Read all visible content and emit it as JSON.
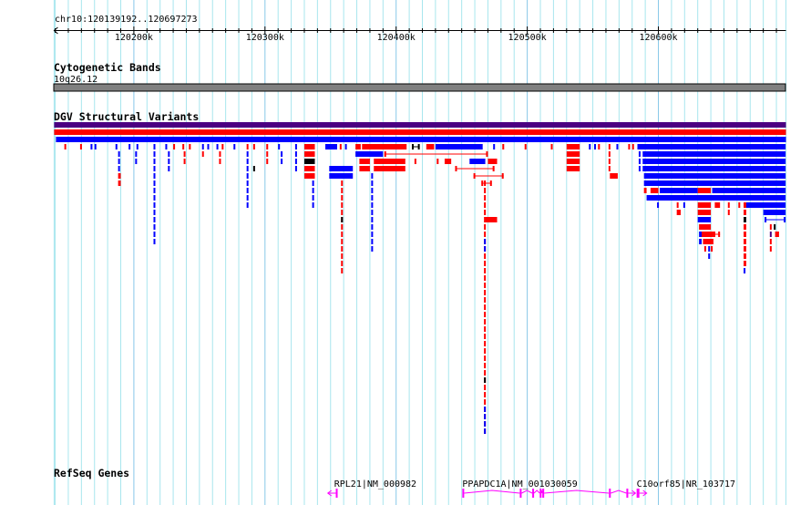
{
  "view": {
    "location": "chr10:120139192..120697273",
    "start_kb": 120139.192,
    "end_kb": 120697.273,
    "ruler_ticks": [
      {
        "kb": 120200,
        "label": "120200k"
      },
      {
        "kb": 120300,
        "label": "120300k"
      },
      {
        "kb": 120400,
        "label": "120400k"
      },
      {
        "kb": 120500,
        "label": "120500k"
      },
      {
        "kb": 120600,
        "label": "120600k"
      }
    ]
  },
  "colors": {
    "grid_minor": "#a8e6ee",
    "grid_major": "#88c8e8",
    "red": "#ff0000",
    "blue": "#0000ff",
    "black": "#000000",
    "purple": "#4b0082",
    "band": "#808080",
    "gene": "#ff00ff"
  },
  "tracks": {
    "cytoband": {
      "title": "Cytogenetic Bands",
      "band_label": "10q26.12"
    },
    "dgv": {
      "title": "DGV Structural Variants",
      "summary_bars": [
        "purple",
        "red",
        "blue"
      ],
      "variants": [
        [
          120147,
          120148,
          0,
          0,
          "r"
        ],
        [
          120159,
          120160,
          0,
          0,
          "r"
        ],
        [
          120167,
          120168,
          0,
          0,
          "b"
        ],
        [
          120170,
          120171,
          0,
          0,
          "b"
        ],
        [
          120186,
          120187,
          0,
          0,
          "b"
        ],
        [
          120196,
          120197,
          0,
          0,
          "b"
        ],
        [
          120202,
          120203,
          0,
          0,
          "b"
        ],
        [
          120215,
          120216,
          0,
          0,
          "b"
        ],
        [
          120224,
          120225,
          0,
          0,
          "b"
        ],
        [
          120230,
          120231,
          0,
          0,
          "r"
        ],
        [
          120237,
          120238,
          0,
          0,
          "r"
        ],
        [
          120242,
          120243,
          0,
          0,
          "r"
        ],
        [
          120252,
          120253,
          0,
          0,
          "b"
        ],
        [
          120256,
          120257,
          0,
          0,
          "b"
        ],
        [
          120263,
          120264,
          0,
          0,
          "b"
        ],
        [
          120267,
          120268,
          0,
          0,
          "r"
        ],
        [
          120276,
          120277,
          0,
          0,
          "b"
        ],
        [
          120286,
          120287,
          0,
          0,
          "r"
        ],
        [
          120291,
          120292,
          0,
          0,
          "r"
        ],
        [
          120301,
          120302,
          0,
          0,
          "r"
        ],
        [
          120310,
          120311,
          0,
          0,
          "b"
        ],
        [
          120323,
          120324,
          0,
          0,
          "b"
        ],
        [
          120330,
          120338,
          0,
          0,
          "r"
        ],
        [
          120346,
          120355,
          0,
          0,
          "b"
        ],
        [
          120357,
          120358,
          0,
          0,
          "r"
        ],
        [
          120361,
          120362,
          0,
          0,
          "b"
        ],
        [
          120369,
          120373,
          0,
          0,
          "r"
        ],
        [
          120374,
          120408,
          0,
          0,
          "r"
        ],
        [
          120412,
          120418,
          0,
          0,
          "k",
          "l"
        ],
        [
          120423,
          120429,
          0,
          0,
          "r"
        ],
        [
          120430,
          120466,
          0,
          0,
          "b"
        ],
        [
          120474,
          120475,
          0,
          0,
          "b"
        ],
        [
          120481,
          120482,
          0,
          0,
          "r"
        ],
        [
          120498,
          120499,
          0,
          0,
          "r"
        ],
        [
          120518,
          120519,
          0,
          0,
          "r"
        ],
        [
          120530,
          120540,
          0,
          0,
          "r"
        ],
        [
          120547,
          120548,
          0,
          0,
          "b"
        ],
        [
          120551,
          120552,
          0,
          0,
          "b"
        ],
        [
          120554,
          120555,
          0,
          0,
          "r"
        ],
        [
          120562,
          120563,
          0,
          0,
          "r"
        ],
        [
          120568,
          120569,
          0,
          0,
          "b"
        ],
        [
          120577,
          120578,
          0,
          0,
          "r"
        ],
        [
          120580,
          120581,
          0,
          0,
          "r"
        ],
        [
          120584,
          120697,
          0,
          0,
          "b"
        ],
        [
          120188,
          120189,
          1,
          3,
          "b"
        ],
        [
          120188,
          120190,
          4,
          5,
          "r"
        ],
        [
          120201,
          120202,
          1,
          2,
          "b"
        ],
        [
          120215,
          120216,
          1,
          13,
          "b"
        ],
        [
          120226,
          120227,
          1,
          3,
          "b"
        ],
        [
          120238,
          120239,
          1,
          2,
          "r"
        ],
        [
          120252,
          120253,
          1,
          1,
          "r"
        ],
        [
          120265,
          120266,
          1,
          2,
          "r"
        ],
        [
          120286,
          120287,
          1,
          8,
          "b"
        ],
        [
          120291,
          120292,
          3,
          3,
          "k"
        ],
        [
          120301,
          120302,
          1,
          2,
          "r"
        ],
        [
          120312,
          120313,
          1,
          2,
          "b"
        ],
        [
          120323,
          120324,
          1,
          3,
          "b"
        ],
        [
          120330,
          120338,
          1,
          1,
          "r"
        ],
        [
          120330,
          120338,
          2,
          2,
          "k"
        ],
        [
          120330,
          120338,
          3,
          4,
          "r"
        ],
        [
          120336,
          120337,
          5,
          8,
          "b"
        ],
        [
          120349,
          120367,
          3,
          4,
          "b"
        ],
        [
          120358,
          120359,
          5,
          17,
          "r"
        ],
        [
          120358,
          120359,
          10,
          10,
          "k"
        ],
        [
          120369,
          120390,
          1,
          1,
          "b"
        ],
        [
          120372,
          120380,
          2,
          3,
          "r"
        ],
        [
          120381,
          120382,
          4,
          14,
          "b"
        ],
        [
          120383,
          120407,
          2,
          3,
          "r"
        ],
        [
          120391,
          120470,
          1,
          1,
          "r",
          "l"
        ],
        [
          120414,
          120415,
          2,
          2,
          "r"
        ],
        [
          120431,
          120432,
          2,
          2,
          "r"
        ],
        [
          120437,
          120442,
          2,
          2,
          "r"
        ],
        [
          120445,
          120475,
          3,
          3,
          "r",
          "l"
        ],
        [
          120456,
          120468,
          2,
          2,
          "b"
        ],
        [
          120470,
          120477,
          2,
          2,
          "r"
        ],
        [
          120459,
          120482,
          4,
          4,
          "r",
          "l"
        ],
        [
          120465,
          120473,
          5,
          5,
          "r",
          "l"
        ],
        [
          120467,
          120468,
          5,
          39,
          "r"
        ],
        [
          120467,
          120468,
          13,
          14,
          "b"
        ],
        [
          120467,
          120468,
          32,
          32,
          "k"
        ],
        [
          120467,
          120468,
          36,
          39,
          "b"
        ],
        [
          120468,
          120477,
          10,
          10,
          "r"
        ],
        [
          120530,
          120540,
          1,
          3,
          "r"
        ],
        [
          120562,
          120563,
          1,
          3,
          "r"
        ],
        [
          120563,
          120569,
          4,
          4,
          "r"
        ],
        [
          120585,
          120586,
          1,
          3,
          "b"
        ],
        [
          120588,
          120697,
          1,
          3,
          "b"
        ],
        [
          120589,
          120697,
          4,
          5,
          "b"
        ],
        [
          120589,
          120591,
          6,
          6,
          "r"
        ],
        [
          120594,
          120600,
          6,
          6,
          "r"
        ],
        [
          120601,
          120630,
          6,
          6,
          "b"
        ],
        [
          120630,
          120640,
          6,
          6,
          "r"
        ],
        [
          120641,
          120697,
          6,
          6,
          "b"
        ],
        [
          120591,
          120697,
          7,
          7,
          "b"
        ],
        [
          120599,
          120600,
          8,
          8,
          "b"
        ],
        [
          120614,
          120615,
          8,
          8,
          "r"
        ],
        [
          120619,
          120620,
          8,
          8,
          "b"
        ],
        [
          120630,
          120640,
          8,
          9,
          "r"
        ],
        [
          120643,
          120647,
          8,
          8,
          "r"
        ],
        [
          120653,
          120654,
          8,
          9,
          "r"
        ],
        [
          120661,
          120662,
          8,
          8,
          "r"
        ],
        [
          120665,
          120667,
          8,
          9,
          "r"
        ],
        [
          120667,
          120697,
          8,
          8,
          "b"
        ],
        [
          120614,
          120617,
          9,
          9,
          "r"
        ],
        [
          120680,
          120697,
          9,
          9,
          "b"
        ],
        [
          120630,
          120640,
          10,
          10,
          "b"
        ],
        [
          120665,
          120667,
          10,
          10,
          "k"
        ],
        [
          120681,
          120697,
          10,
          10,
          "b",
          "l"
        ],
        [
          120631,
          120640,
          11,
          11,
          "r"
        ],
        [
          120685,
          120686,
          11,
          11,
          "r"
        ],
        [
          120688,
          120689,
          11,
          11,
          "k"
        ],
        [
          120631,
          120633,
          12,
          13,
          "b"
        ],
        [
          120633,
          120642,
          12,
          12,
          "r"
        ],
        [
          120642,
          120647,
          12,
          12,
          "r",
          "l"
        ],
        [
          120685,
          120686,
          12,
          12,
          "p"
        ],
        [
          120689,
          120692,
          12,
          12,
          "r"
        ],
        [
          120634,
          120642,
          13,
          13,
          "r"
        ],
        [
          120665,
          120667,
          11,
          16,
          "r"
        ],
        [
          120685,
          120686,
          13,
          14,
          "r"
        ],
        [
          120635,
          120636,
          14,
          14,
          "r"
        ],
        [
          120638,
          120639,
          14,
          15,
          "b"
        ],
        [
          120640,
          120641,
          14,
          14,
          "r"
        ],
        [
          120665,
          120666,
          17,
          17,
          "b"
        ]
      ]
    },
    "refseq": {
      "title": "RefSeq Genes",
      "genes": [
        {
          "label": "RPL21|NM_000982",
          "start": 120347.9,
          "end": 120354.9,
          "strand": "-",
          "exons": [
            [
              120354.0,
              120354.9
            ]
          ]
        },
        {
          "label": "PPAPDC1A|NM_001030059",
          "start": 120450.5,
          "end": 120576.5,
          "strand": "+",
          "exons": [
            [
              120450.5,
              120451.2
            ],
            [
              120494.3,
              120495.0
            ],
            [
              120503.8,
              120504.5
            ],
            [
              120509.5,
              120510.2
            ],
            [
              120511.5,
              120512.2
            ],
            [
              120562.3,
              120563.0
            ],
            [
              120575.6,
              120576.3
            ]
          ]
        },
        {
          "label": "C10orf85|NR_103717",
          "start": 120583.4,
          "end": 120591.0,
          "strand": "+",
          "exons": [
            [
              120583.4,
              120585.5
            ]
          ]
        }
      ]
    }
  }
}
